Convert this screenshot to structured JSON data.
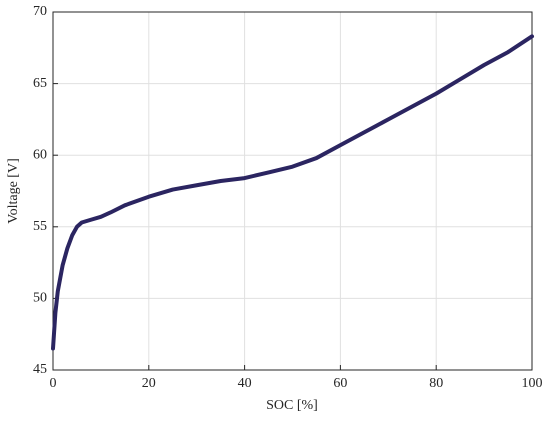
{
  "chart_data": {
    "type": "line",
    "x_label": "SOC [%]",
    "y_label": "Voltage [V]",
    "x": [
      0,
      0.5,
      1,
      2,
      3,
      4,
      5,
      6,
      8,
      10,
      12,
      15,
      20,
      25,
      30,
      35,
      40,
      45,
      50,
      55,
      60,
      65,
      70,
      75,
      80,
      85,
      90,
      95,
      100
    ],
    "series": [
      {
        "color": "#2b2561",
        "values": [
          46.5,
          49,
          50.5,
          52.3,
          53.5,
          54.4,
          55.0,
          55.3,
          55.5,
          55.7,
          56.0,
          56.5,
          57.1,
          57.6,
          57.9,
          58.2,
          58.4,
          58.8,
          59.2,
          59.8,
          60.7,
          61.6,
          62.5,
          63.4,
          64.3,
          65.3,
          66.3,
          67.2,
          68.3
        ]
      }
    ],
    "xlim": [
      0,
      100
    ],
    "xticks": [
      0,
      20,
      40,
      60,
      80,
      100
    ],
    "ylim": [
      45,
      70
    ],
    "yticks": [
      45,
      50,
      55,
      60,
      65,
      70
    ],
    "grid": true
  }
}
